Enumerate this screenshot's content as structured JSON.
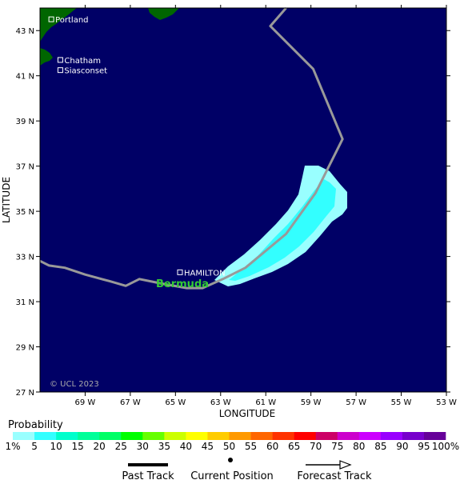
{
  "map": {
    "lat_ticks": [
      {
        "label": "43 N",
        "v": 43
      },
      {
        "label": "41 N",
        "v": 41
      },
      {
        "label": "39 N",
        "v": 39
      },
      {
        "label": "37 N",
        "v": 37
      },
      {
        "label": "35 N",
        "v": 35
      },
      {
        "label": "33 N",
        "v": 33
      },
      {
        "label": "31 N",
        "v": 31
      },
      {
        "label": "29 N",
        "v": 29
      },
      {
        "label": "27 N",
        "v": 27
      }
    ],
    "lon_ticks": [
      {
        "label": "69 W",
        "v": -69
      },
      {
        "label": "67 W",
        "v": -67
      },
      {
        "label": "65 W",
        "v": -65
      },
      {
        "label": "63 W",
        "v": -63
      },
      {
        "label": "61 W",
        "v": -61
      },
      {
        "label": "59 W",
        "v": -59
      },
      {
        "label": "57 W",
        "v": -57
      },
      {
        "label": "55 W",
        "v": -55
      },
      {
        "label": "53 W",
        "v": -53
      }
    ],
    "x_axis_label": "LONGITUDE",
    "y_axis_label": "LATITUDE",
    "lat_range": [
      27,
      44
    ],
    "lon_range": [
      -71,
      -53
    ],
    "places": [
      {
        "name": "Portland",
        "lat": 43.5,
        "lon": -70.5
      },
      {
        "name": "Chatham",
        "lat": 41.7,
        "lon": -70.1
      },
      {
        "name": "Siasconset",
        "lat": 41.25,
        "lon": -70.1
      },
      {
        "name": "HAMILTON",
        "lat": 32.3,
        "lon": -64.8
      }
    ],
    "island_label": "Bermuda",
    "copyright": "© UCL 2023",
    "track": [
      {
        "lon": -71.0,
        "lat": 32.8
      },
      {
        "lon": -70.6,
        "lat": 32.6
      },
      {
        "lon": -69.9,
        "lat": 32.5
      },
      {
        "lon": -69.0,
        "lat": 32.2
      },
      {
        "lon": -67.9,
        "lat": 31.9
      },
      {
        "lon": -67.2,
        "lat": 31.7
      },
      {
        "lon": -66.6,
        "lat": 32.0
      },
      {
        "lon": -65.6,
        "lat": 31.8
      },
      {
        "lon": -64.5,
        "lat": 31.6
      },
      {
        "lon": -63.8,
        "lat": 31.6
      },
      {
        "lon": -62.9,
        "lat": 32.0
      },
      {
        "lon": -61.9,
        "lat": 32.5
      },
      {
        "lon": -60.1,
        "lat": 34.0
      },
      {
        "lon": -58.8,
        "lat": 35.8
      },
      {
        "lon": -57.6,
        "lat": 38.2
      },
      {
        "lon": -58.9,
        "lat": 41.3
      },
      {
        "lon": -60.8,
        "lat": 43.2
      },
      {
        "lon": -60.1,
        "lat": 44.0
      }
    ],
    "colors": {
      "ocean": "#000066",
      "land": "#006600",
      "track": "#999999",
      "prob_1_5": "#99ffff",
      "prob_5_10": "#33ffff",
      "island_label": "#33cc33"
    }
  },
  "probability": {
    "title": "Probability",
    "labels": [
      "1%",
      "5",
      "10",
      "15",
      "20",
      "25",
      "30",
      "35",
      "40",
      "45",
      "50",
      "55",
      "60",
      "65",
      "70",
      "75",
      "80",
      "85",
      "90",
      "95",
      "100%"
    ],
    "colors": [
      "#99ffff",
      "#33ffff",
      "#00ffcc",
      "#00ff99",
      "#00ff66",
      "#00ff00",
      "#66ff00",
      "#ccff00",
      "#ffff00",
      "#ffcc00",
      "#ff9900",
      "#ff6600",
      "#ff3300",
      "#ff0000",
      "#cc0066",
      "#cc00cc",
      "#cc00ff",
      "#9900ff",
      "#7700cc",
      "#660099"
    ]
  },
  "legend": {
    "past_track": "Past Track",
    "current_position": "Current Position",
    "forecast_track": "Forecast Track"
  }
}
